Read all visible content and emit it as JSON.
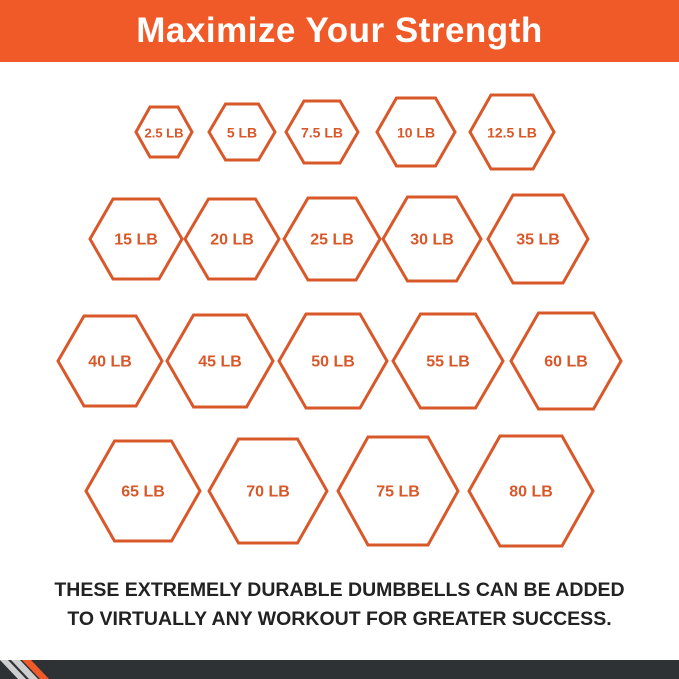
{
  "header": {
    "title": "Maximize Your Strength"
  },
  "colors": {
    "banner": "#f05a28",
    "hexagon": "#d9582a",
    "footer": "#2e3234"
  },
  "weights": {
    "rows": [
      [
        "2.5 LB",
        "5 LB",
        "7.5 LB",
        "10 LB",
        "12.5 LB"
      ],
      [
        "15 LB",
        "20 LB",
        "25 LB",
        "30 LB",
        "35 LB"
      ],
      [
        "40 LB",
        "45 LB",
        "50 LB",
        "55 LB",
        "60 LB"
      ],
      [
        "65 LB",
        "70 LB",
        "75 LB",
        "80 LB"
      ]
    ]
  },
  "caption": {
    "line1": "THESE EXTREMELY DURABLE DUMBBELLS CAN BE ADDED",
    "line2": "TO VIRTUALLY ANY WORKOUT FOR GREATER SUCCESS."
  }
}
